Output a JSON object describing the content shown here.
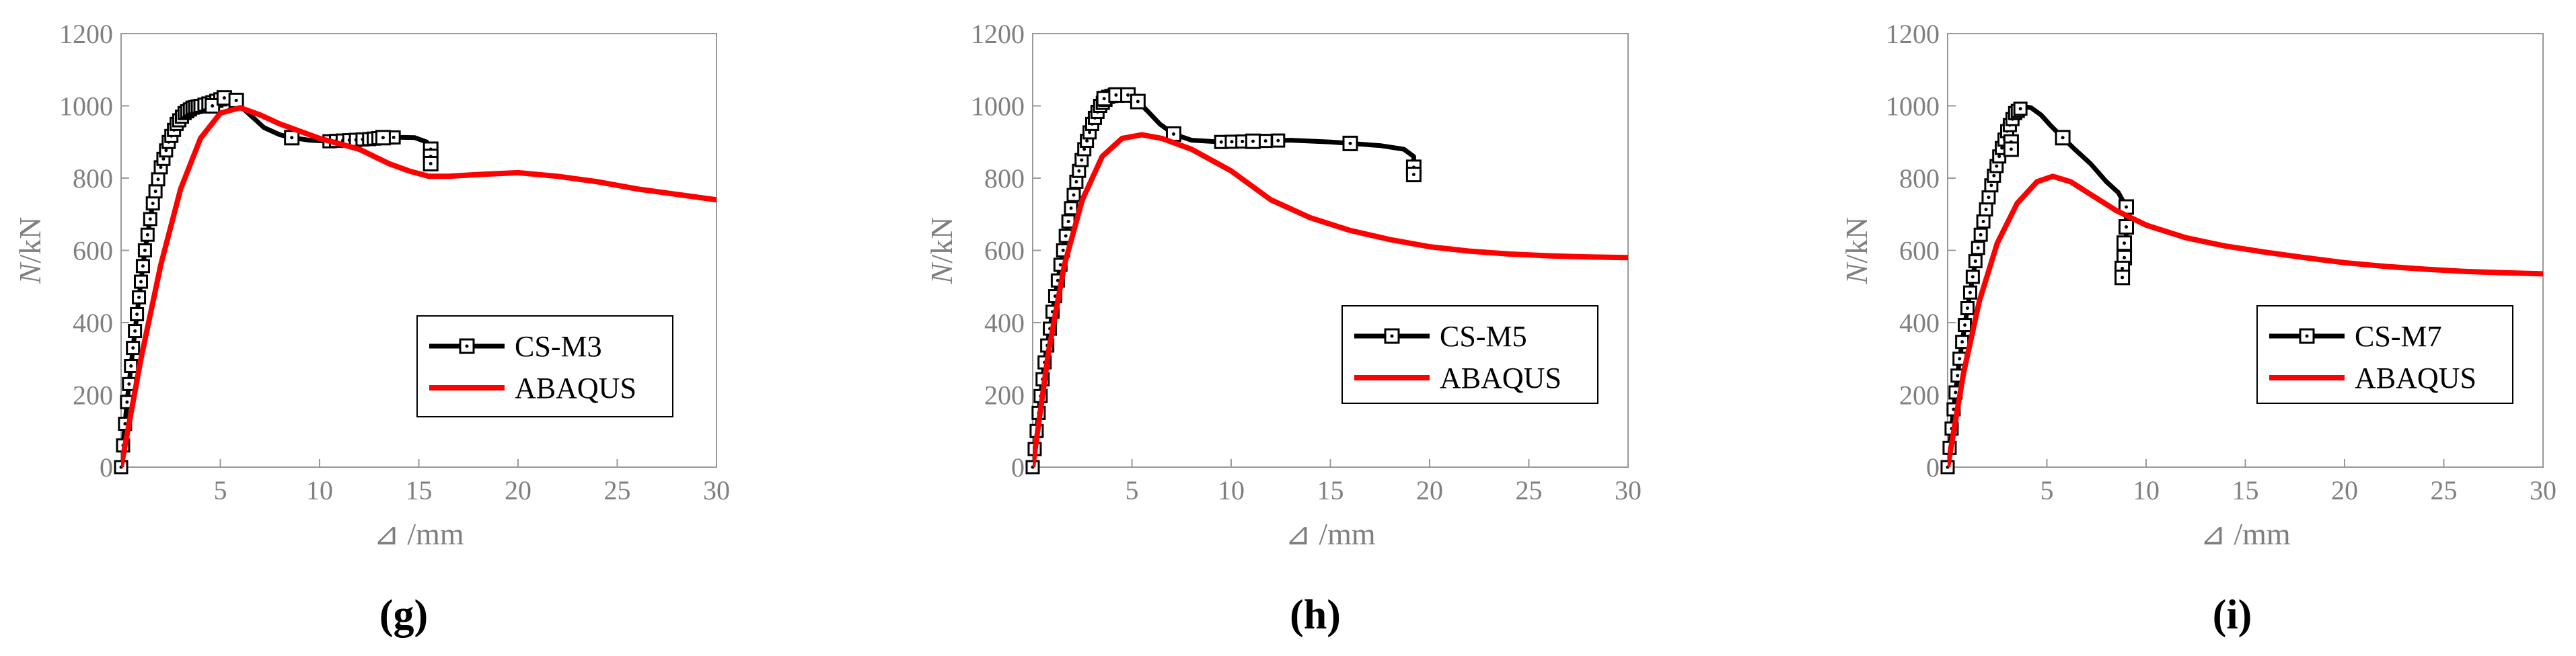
{
  "colors": {
    "experiment": "#000000",
    "abaqus": "#ff0000",
    "axis": "#999999",
    "tick_text": "#7f7f7f"
  },
  "chart_data": [
    {
      "type": "line",
      "panel_label": "(g)",
      "xlabel": "⊿ /mm",
      "ylabel_italic": "N",
      "ylabel_rest": "/kN",
      "xlim": [
        0,
        30
      ],
      "ylim": [
        0,
        1200
      ],
      "xticks": [
        5,
        10,
        15,
        20,
        25,
        30
      ],
      "yticks": [
        0,
        200,
        400,
        600,
        800,
        1000,
        1200
      ],
      "series": [
        {
          "name": "CS-M3",
          "style": "experiment",
          "x": [
            0,
            0.3,
            0.6,
            0.9,
            1.2,
            1.6,
            2.0,
            2.4,
            2.8,
            3.2,
            3.6,
            4.0,
            4.6,
            5.2,
            5.6,
            6.0,
            6.6,
            7.2,
            8.0,
            8.6,
            9.5,
            10.5,
            11.5,
            12.5,
            13.2,
            14.0,
            14.8,
            15.4,
            15.6,
            15.7,
            15.6
          ],
          "y": [
            0,
            180,
            330,
            470,
            600,
            730,
            830,
            900,
            950,
            980,
            995,
            1000,
            1010,
            1022,
            1020,
            1000,
            970,
            940,
            920,
            912,
            905,
            902,
            905,
            908,
            912,
            913,
            912,
            900,
            870,
            860,
            840
          ],
          "markers": [
            [
              4.6,
              1000
            ],
            [
              5.2,
              1022
            ],
            [
              5.8,
              1015
            ],
            [
              8.6,
              912
            ],
            [
              13.2,
              912
            ],
            [
              15.6,
              880
            ],
            [
              15.6,
              860
            ],
            [
              15.6,
              840
            ]
          ]
        },
        {
          "name": "ABAQUS",
          "style": "model",
          "x": [
            0,
            1,
            2,
            3,
            4,
            5,
            6,
            7,
            8,
            10,
            12,
            13.5,
            14.5,
            15.5,
            16.5,
            18,
            20,
            22,
            24,
            26,
            28,
            30
          ],
          "y": [
            0,
            300,
            560,
            770,
            910,
            980,
            995,
            975,
            950,
            910,
            880,
            840,
            820,
            805,
            805,
            810,
            815,
            805,
            790,
            770,
            755,
            740
          ]
        }
      ],
      "legend": {
        "position": "lower-right",
        "entries": [
          "CS-M3",
          "ABAQUS"
        ]
      }
    },
    {
      "type": "line",
      "panel_label": "(h)",
      "xlabel": "⊿ /mm",
      "ylabel_italic": "N",
      "ylabel_rest": "/kN",
      "xlim": [
        0,
        30
      ],
      "ylim": [
        0,
        1200
      ],
      "xticks": [
        5,
        10,
        15,
        20,
        25,
        30
      ],
      "yticks": [
        0,
        200,
        400,
        600,
        800,
        1000,
        1200
      ],
      "series": [
        {
          "name": "CS-M5",
          "style": "experiment",
          "x": [
            0,
            0.3,
            0.6,
            1.0,
            1.4,
            1.8,
            2.2,
            2.6,
            3.0,
            3.4,
            3.8,
            4.3,
            4.8,
            5.3,
            5.8,
            6.4,
            7.1,
            8.0,
            9.5,
            11.1,
            13,
            15,
            16.0,
            17.5,
            18.7,
            19.2,
            19.2,
            19.2
          ],
          "y": [
            0,
            150,
            290,
            430,
            560,
            680,
            790,
            880,
            950,
            1000,
            1025,
            1032,
            1028,
            1012,
            985,
            950,
            922,
            905,
            900,
            902,
            905,
            900,
            896,
            890,
            880,
            860,
            830,
            810
          ],
          "markers": [
            [
              3.6,
              1020
            ],
            [
              4.2,
              1030
            ],
            [
              4.8,
              1030
            ],
            [
              5.3,
              1012
            ],
            [
              7.1,
              922
            ],
            [
              11.1,
              902
            ],
            [
              16.0,
              896
            ],
            [
              19.2,
              830
            ],
            [
              19.2,
              810
            ]
          ]
        },
        {
          "name": "ABAQUS",
          "style": "model",
          "x": [
            0,
            0.8,
            1.6,
            2.5,
            3.5,
            4.5,
            5.5,
            6.5,
            8,
            10,
            12,
            14,
            16,
            18,
            20,
            22,
            24,
            26,
            28,
            30
          ],
          "y": [
            0,
            320,
            560,
            740,
            860,
            910,
            920,
            910,
            880,
            820,
            740,
            690,
            655,
            630,
            610,
            598,
            590,
            585,
            582,
            580
          ]
        }
      ],
      "legend": {
        "position": "lower-right",
        "entries": [
          "CS-M5",
          "ABAQUS"
        ]
      }
    },
    {
      "type": "line",
      "panel_label": "(i)",
      "xlabel": "⊿ /mm",
      "ylabel_italic": "N",
      "ylabel_rest": "/kN",
      "xlim": [
        0,
        30
      ],
      "ylim": [
        0,
        1200
      ],
      "xticks": [
        5,
        10,
        15,
        20,
        25,
        30
      ],
      "yticks": [
        0,
        200,
        400,
        600,
        800,
        1000,
        1200
      ],
      "series": [
        {
          "name": "CS-M7",
          "style": "experiment",
          "x": [
            0,
            0.3,
            0.6,
            1.0,
            1.4,
            1.8,
            2.2,
            2.6,
            3.0,
            3.4,
            3.8,
            4.2,
            4.7,
            5.2,
            5.8,
            6.4,
            7.2,
            8.0,
            8.6,
            9.0,
            9.0,
            9.0,
            8.9,
            8.8
          ],
          "y": [
            0,
            160,
            300,
            440,
            570,
            680,
            780,
            860,
            930,
            980,
            998,
            995,
            975,
            945,
            912,
            880,
            840,
            790,
            760,
            720,
            660,
            600,
            560,
            525
          ],
          "markers": [
            [
              3.2,
              900
            ],
            [
              3.2,
              880
            ],
            [
              5.8,
              912
            ],
            [
              9.0,
              720
            ],
            [
              9.0,
              665
            ],
            [
              8.9,
              620
            ],
            [
              8.9,
              580
            ],
            [
              8.8,
              550
            ],
            [
              8.8,
              525
            ]
          ]
        },
        {
          "name": "ABAQUS",
          "style": "model",
          "x": [
            0,
            0.8,
            1.6,
            2.5,
            3.5,
            4.5,
            5.3,
            6.2,
            7.2,
            8.5,
            10,
            12,
            14,
            16,
            18,
            20,
            22,
            24,
            26,
            28,
            30
          ],
          "y": [
            0,
            260,
            460,
            620,
            730,
            790,
            805,
            790,
            755,
            710,
            670,
            635,
            612,
            595,
            580,
            566,
            556,
            548,
            542,
            538,
            535
          ]
        }
      ],
      "legend": {
        "position": "lower-right",
        "entries": [
          "CS-M7",
          "ABAQUS"
        ]
      }
    }
  ]
}
